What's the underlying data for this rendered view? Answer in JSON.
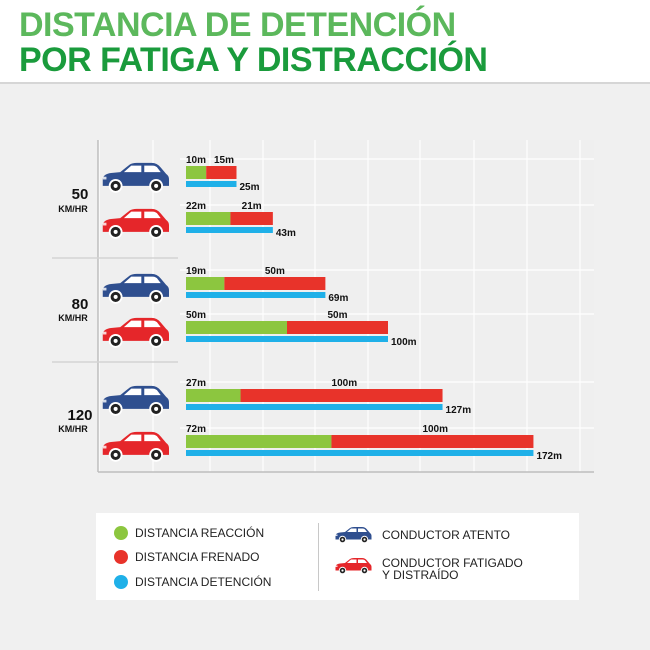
{
  "title": {
    "line1": "DISTANCIA DE DETENCIÓN",
    "line2": "POR FATIGA Y DISTRACCIÓN"
  },
  "colors": {
    "title_line1": "#5cb85c",
    "title_line2": "#1a9b3c",
    "reaccion": "#8cc63f",
    "frenado": "#e8332a",
    "detencion": "#1fb0e8",
    "car_blue": "#2f4f8f",
    "car_red": "#e5262a"
  },
  "chart_data": {
    "type": "bar",
    "orientation": "horizontal",
    "stacked": true,
    "grid": true,
    "groups": [
      {
        "speed": "50",
        "unit": "KM/HR",
        "rows": [
          {
            "driver": "atento",
            "reaccion": 10,
            "frenado": 15,
            "detencion": 25,
            "reaccion_label": "10m",
            "frenado_label": "15m",
            "detencion_label": "25m"
          },
          {
            "driver": "fatigado",
            "reaccion": 22,
            "frenado": 21,
            "detencion": 43,
            "reaccion_label": "22m",
            "frenado_label": "21m",
            "detencion_label": "43m"
          }
        ]
      },
      {
        "speed": "80",
        "unit": "KM/HR",
        "rows": [
          {
            "driver": "atento",
            "reaccion": 19,
            "frenado": 50,
            "detencion": 69,
            "reaccion_label": "19m",
            "frenado_label": "50m",
            "detencion_label": "69m"
          },
          {
            "driver": "fatigado",
            "reaccion": 50,
            "frenado": 50,
            "detencion": 100,
            "reaccion_label": "50m",
            "frenado_label": "50m",
            "detencion_label": "100m"
          }
        ]
      },
      {
        "speed": "120",
        "unit": "KM/HR",
        "rows": [
          {
            "driver": "atento",
            "reaccion": 27,
            "frenado": 100,
            "detencion": 127,
            "reaccion_label": "27m",
            "frenado_label": "100m",
            "detencion_label": "127m"
          },
          {
            "driver": "fatigado",
            "reaccion": 72,
            "frenado": 100,
            "detencion": 172,
            "reaccion_label": "72m",
            "frenado_label": "100m",
            "detencion_label": "172m"
          }
        ]
      }
    ]
  },
  "legend": {
    "reaccion": "DISTANCIA REACCIÓN",
    "frenado": "DISTANCIA FRENADO",
    "detencion": "DISTANCIA DETENCIÓN",
    "atento": "CONDUCTOR ATENTO",
    "fatigado_line1": "CONDUCTOR FATIGADO",
    "fatigado_line2": "Y DISTRAÍDO"
  }
}
